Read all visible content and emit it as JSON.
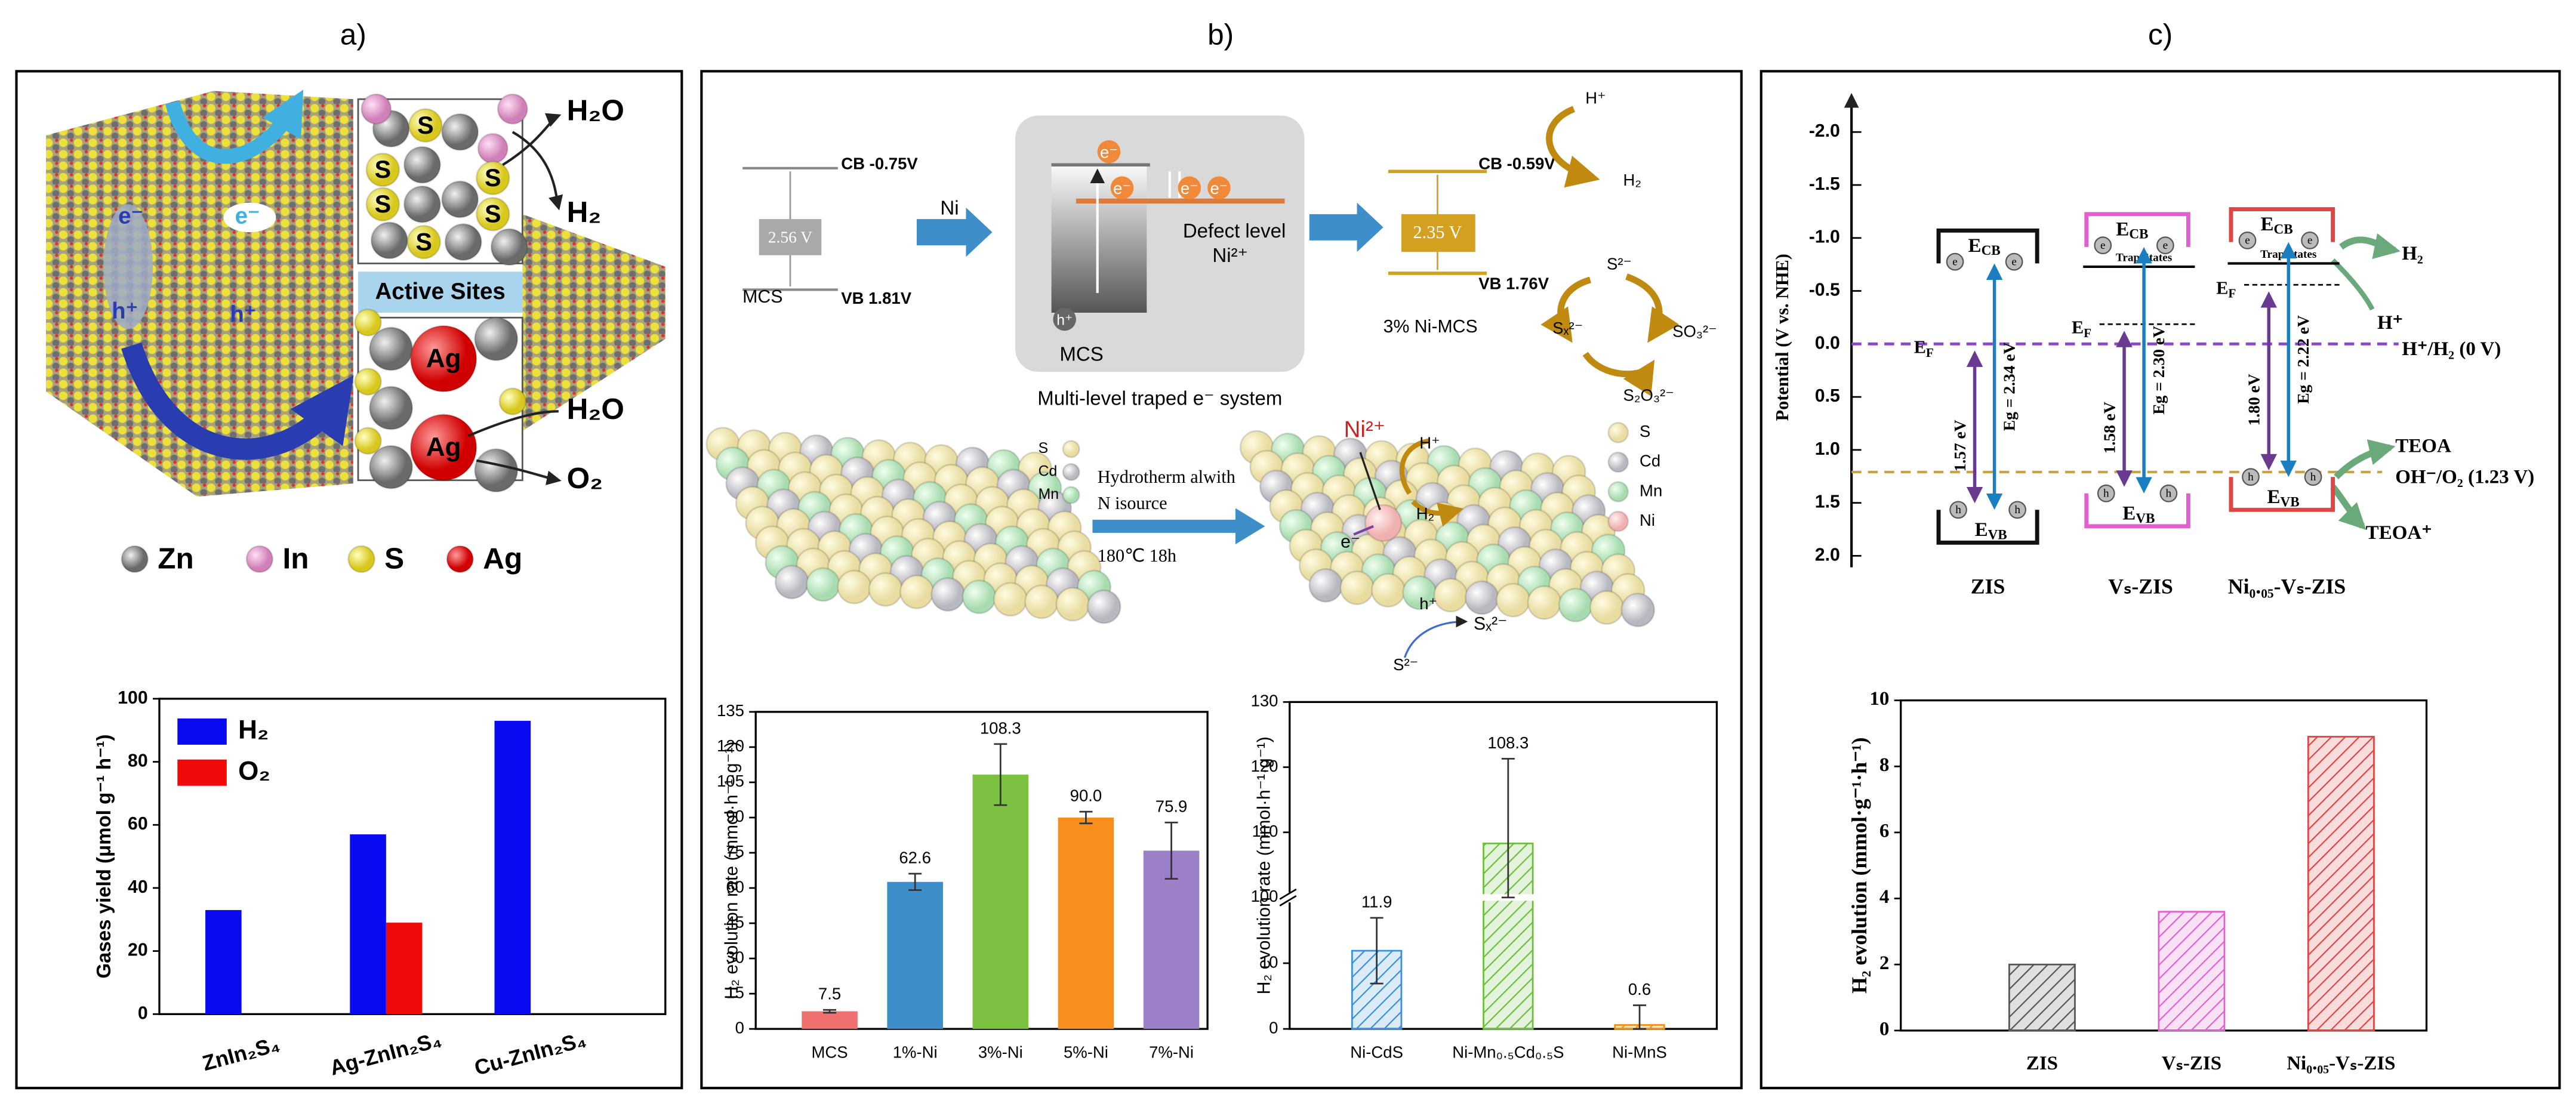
{
  "panel_labels": [
    "a)",
    "b)",
    "c)"
  ],
  "panel_a": {
    "water_top": "H₂O",
    "hydrogen": "H₂",
    "active_sites": "Active Sites",
    "water_bottom": "H₂O",
    "oxygen": "O₂",
    "electron": "e⁻",
    "hole": "h⁺",
    "sulfur": "S",
    "silver": "Ag",
    "legend": [
      "Zn",
      "In",
      "S",
      "Ag"
    ]
  },
  "panel_b": {
    "mcs_cb": "CB -0.75V",
    "mcs_gap": "2.56 V",
    "mcs_vb": "VB 1.81V",
    "mcs": "MCS",
    "ni": "Ni",
    "electron": "e⁻",
    "defect_level": "Defect level",
    "ni_ion": "Ni²⁺",
    "hole": "h⁺",
    "system": "Multi-level traped e⁻ system",
    "ni_mcs_cb": "CB -0.59V",
    "ni_mcs_gap": "2.35 V",
    "ni_mcs_vb": "VB 1.76V",
    "ni_mcs": "3% Ni-MCS",
    "proton": "H⁺",
    "hydrogen": "H₂",
    "sulfide": "S²⁻",
    "polysulfide": "Sₓ²⁻",
    "sulfite": "SO₃²⁻",
    "thiosulfate": "S₂O₃²⁻",
    "legend_left": [
      "S",
      "Cd",
      "Mn"
    ],
    "synthesis": [
      "Hydrotherm alwith",
      "N isource",
      "180℃ 18h"
    ],
    "legend_right": [
      "S",
      "Cd",
      "Mn",
      "Ni"
    ]
  },
  "panel_c": {
    "yticks": [
      "-2.0",
      "-1.5",
      "-1.0",
      "-0.5",
      "0.0",
      "0.5",
      "1.0",
      "1.5",
      "2.0"
    ],
    "ylabel": "Potential (V vs. NHE)",
    "e_cb": {
      "main": "E",
      "sub": "CB"
    },
    "e_vb": {
      "main": "E",
      "sub": "VB"
    },
    "e_f": {
      "main": "E",
      "sub": "F"
    },
    "trap_states": "Trap States",
    "gaps": [
      "1.57 eV",
      "Eg = 2.34 eV",
      "1.58 eV",
      "Eg = 2.30 eV",
      "1.80 eV",
      "Eg = 2.22 eV"
    ],
    "electron_symbol": "e",
    "hole_symbol": "h",
    "hydrogen": "H₂",
    "proton": "H⁺",
    "h_h2": "H⁺/H₂  (0 V)",
    "teoa": "TEOA",
    "oh_o2": "OH⁻/O₂ (1.23 V)",
    "teoa_plus": "TEOA⁺",
    "samples": [
      "ZIS",
      "Vₛ-ZIS",
      "Ni₀.₀₅-Vₛ-ZIS"
    ]
  },
  "chart_data": [
    {
      "type": "bar",
      "ylabel": "Gases yield (μmol g⁻¹ h⁻¹)",
      "categories": [
        "ZnIn₂S₄",
        "Ag-ZnIn₂S₄",
        "Cu-ZnIn₂S₄"
      ],
      "series": [
        {
          "name": "H₂",
          "color": "#0a0af0",
          "values": [
            33,
            57,
            93
          ]
        },
        {
          "name": "O₂",
          "color": "#f00a0a",
          "values": [
            null,
            29,
            null
          ]
        }
      ],
      "ylim": [
        0,
        100
      ],
      "yticks": [
        0,
        20,
        40,
        60,
        80,
        100
      ],
      "legend": "upper left"
    },
    {
      "type": "bar",
      "ylabel": "H₂ evolution rate (mmol·h⁻¹·g⁻¹)",
      "categories": [
        "MCS",
        "1%-Ni",
        "3%-Ni",
        "5%-Ni",
        "7%-Ni"
      ],
      "values": [
        7.5,
        62.6,
        108.3,
        90.0,
        75.9
      ],
      "value_labels": [
        "7.5",
        "62.6",
        "108.3",
        "90.0",
        "75.9"
      ],
      "errors": [
        0.6,
        3.5,
        13,
        2.5,
        12
      ],
      "colors": [
        "#f07070",
        "#3d8ec9",
        "#7dc142",
        "#f78f1e",
        "#9b7fc7"
      ],
      "ylim": [
        0,
        135
      ],
      "yticks": [
        0,
        15,
        30,
        45,
        60,
        75,
        90,
        105,
        120,
        135
      ]
    },
    {
      "type": "bar",
      "ylabel": "H₂ evolution rate (mmol·h⁻¹·g⁻¹)",
      "categories": [
        "Ni-CdS",
        "Ni-Mn₀.₅Cd₀.₅S",
        "Ni-MnS"
      ],
      "values": [
        11.9,
        108.3,
        0.6
      ],
      "value_labels": [
        "11.9",
        "108.3",
        "0.6"
      ],
      "errors": [
        5,
        13,
        3
      ],
      "colors": [
        "#3d8ed9",
        "#6cbf3a",
        "#f5900a"
      ],
      "hatch": true,
      "ylim": [
        0,
        130
      ],
      "ybreak": [
        20,
        100
      ],
      "yticks": [
        0,
        10,
        100,
        110,
        120,
        130
      ]
    },
    {
      "type": "bar",
      "ylabel": "H₂ evolution (mmol·g⁻¹·h⁻¹)",
      "categories": [
        "ZIS",
        "Vₛ-ZIS",
        "Ni₀.₀₅-Vₛ-ZIS"
      ],
      "values": [
        2.0,
        3.6,
        8.9
      ],
      "colors": [
        "#555555",
        "#e060d0",
        "#e04444"
      ],
      "hatch": true,
      "ylim": [
        0,
        10
      ],
      "yticks": [
        0,
        2,
        4,
        6,
        8,
        10
      ]
    }
  ]
}
